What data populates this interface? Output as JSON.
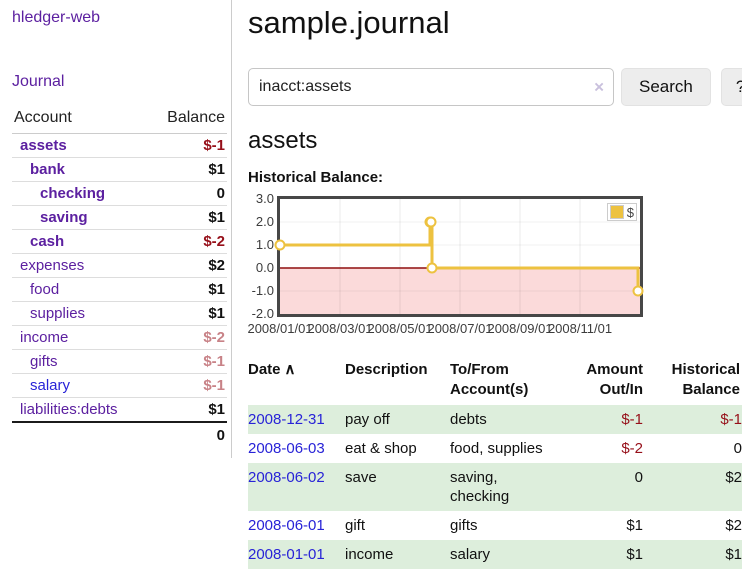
{
  "app_title": "hledger-web",
  "sidebar": {
    "journal_link": "Journal",
    "accounts": {
      "col_account": "Account",
      "col_balance": "Balance",
      "rows": [
        {
          "name": "assets",
          "balance": "$-1",
          "depth": 1,
          "current": true,
          "link_color": "purple",
          "balance_style": "neg"
        },
        {
          "name": "bank",
          "balance": "$1",
          "depth": 2,
          "current": true,
          "link_color": "purple",
          "balance_style": "pos"
        },
        {
          "name": "checking",
          "balance": "0",
          "depth": 3,
          "current": true,
          "link_color": "purple",
          "balance_style": "pos"
        },
        {
          "name": "saving",
          "balance": "$1",
          "depth": 3,
          "current": true,
          "link_color": "purple",
          "balance_style": "pos"
        },
        {
          "name": "cash",
          "balance": "$-2",
          "depth": 2,
          "current": true,
          "link_color": "purple",
          "balance_style": "neg"
        },
        {
          "name": "expenses",
          "balance": "$2",
          "depth": 1,
          "current": false,
          "link_color": "purple",
          "balance_style": "pos"
        },
        {
          "name": "food",
          "balance": "$1",
          "depth": 2,
          "current": false,
          "link_color": "purple",
          "balance_style": "pos"
        },
        {
          "name": "supplies",
          "balance": "$1",
          "depth": 2,
          "current": false,
          "link_color": "purple",
          "balance_style": "pos"
        },
        {
          "name": "income",
          "balance": "$-2",
          "depth": 1,
          "current": false,
          "link_color": "purple",
          "balance_style": "dimneg"
        },
        {
          "name": "gifts",
          "balance": "$-1",
          "depth": 2,
          "current": false,
          "link_color": "purple",
          "balance_style": "dimneg"
        },
        {
          "name": "salary",
          "balance": "$-1",
          "depth": 2,
          "current": false,
          "link_color": "blue",
          "balance_style": "dimneg"
        },
        {
          "name": "liabilities:debts",
          "balance": "$1",
          "depth": 1,
          "current": false,
          "link_color": "purple",
          "balance_style": "pos"
        }
      ],
      "total": "0"
    }
  },
  "main": {
    "title": "sample.journal",
    "search": {
      "value": "inacct:assets",
      "clear_icon": "×",
      "button": "Search",
      "help": "?"
    },
    "heading": "assets",
    "chart_title": "Historical Balance:"
  },
  "chart_data": {
    "type": "line",
    "title": "Historical Balance",
    "series": [
      {
        "name": "$",
        "color": "#edc240",
        "step": true,
        "points": [
          {
            "date": "2008-01-01",
            "value": 1
          },
          {
            "date": "2008-06-01",
            "value": 2
          },
          {
            "date": "2008-06-02",
            "value": 2
          },
          {
            "date": "2008-06-03",
            "value": 0
          },
          {
            "date": "2008-12-31",
            "value": -1
          }
        ]
      }
    ],
    "ylim": [
      -2.0,
      3.0
    ],
    "yticks": [
      "3.0",
      "2.0",
      "1.0",
      "0.0",
      "-1.0",
      "-2.0"
    ],
    "xticks": [
      "2008/01/01",
      "2008/03/01",
      "2008/05/01",
      "2008/07/01",
      "2008/09/01",
      "2008/11/01"
    ],
    "legend": {
      "label": "$",
      "position": "top-right"
    },
    "grid": true,
    "negative_region_color": "#fbdada",
    "zero_line_color": "#8f0f0f"
  },
  "register": {
    "headers": {
      "date": "Date",
      "sort_icon": "∧",
      "description": "Description",
      "accounts": "To/From Account(s)",
      "amount": "Amount Out/In",
      "balance": "Historical Balance"
    },
    "rows": [
      {
        "date": "2008-12-31",
        "description": "pay off",
        "accounts": "debts",
        "amount": "$-1",
        "balance": "$-1"
      },
      {
        "date": "2008-06-03",
        "description": "eat & shop",
        "accounts": "food, supplies",
        "amount": "$-2",
        "balance": "0"
      },
      {
        "date": "2008-06-02",
        "description": "save",
        "accounts": "saving, checking",
        "amount": "0",
        "balance": "$2"
      },
      {
        "date": "2008-06-01",
        "description": "gift",
        "accounts": "gifts",
        "amount": "$1",
        "balance": "$2"
      },
      {
        "date": "2008-01-01",
        "description": "income",
        "accounts": "salary",
        "amount": "$1",
        "balance": "$1"
      }
    ]
  },
  "colors": {
    "link_purple": "#5c20a0",
    "link_blue": "#2823d7",
    "negative": "#960f19",
    "negative_dim": "#c88287",
    "row_stripe_green": "#ddeedc",
    "series_gold": "#edc240"
  }
}
